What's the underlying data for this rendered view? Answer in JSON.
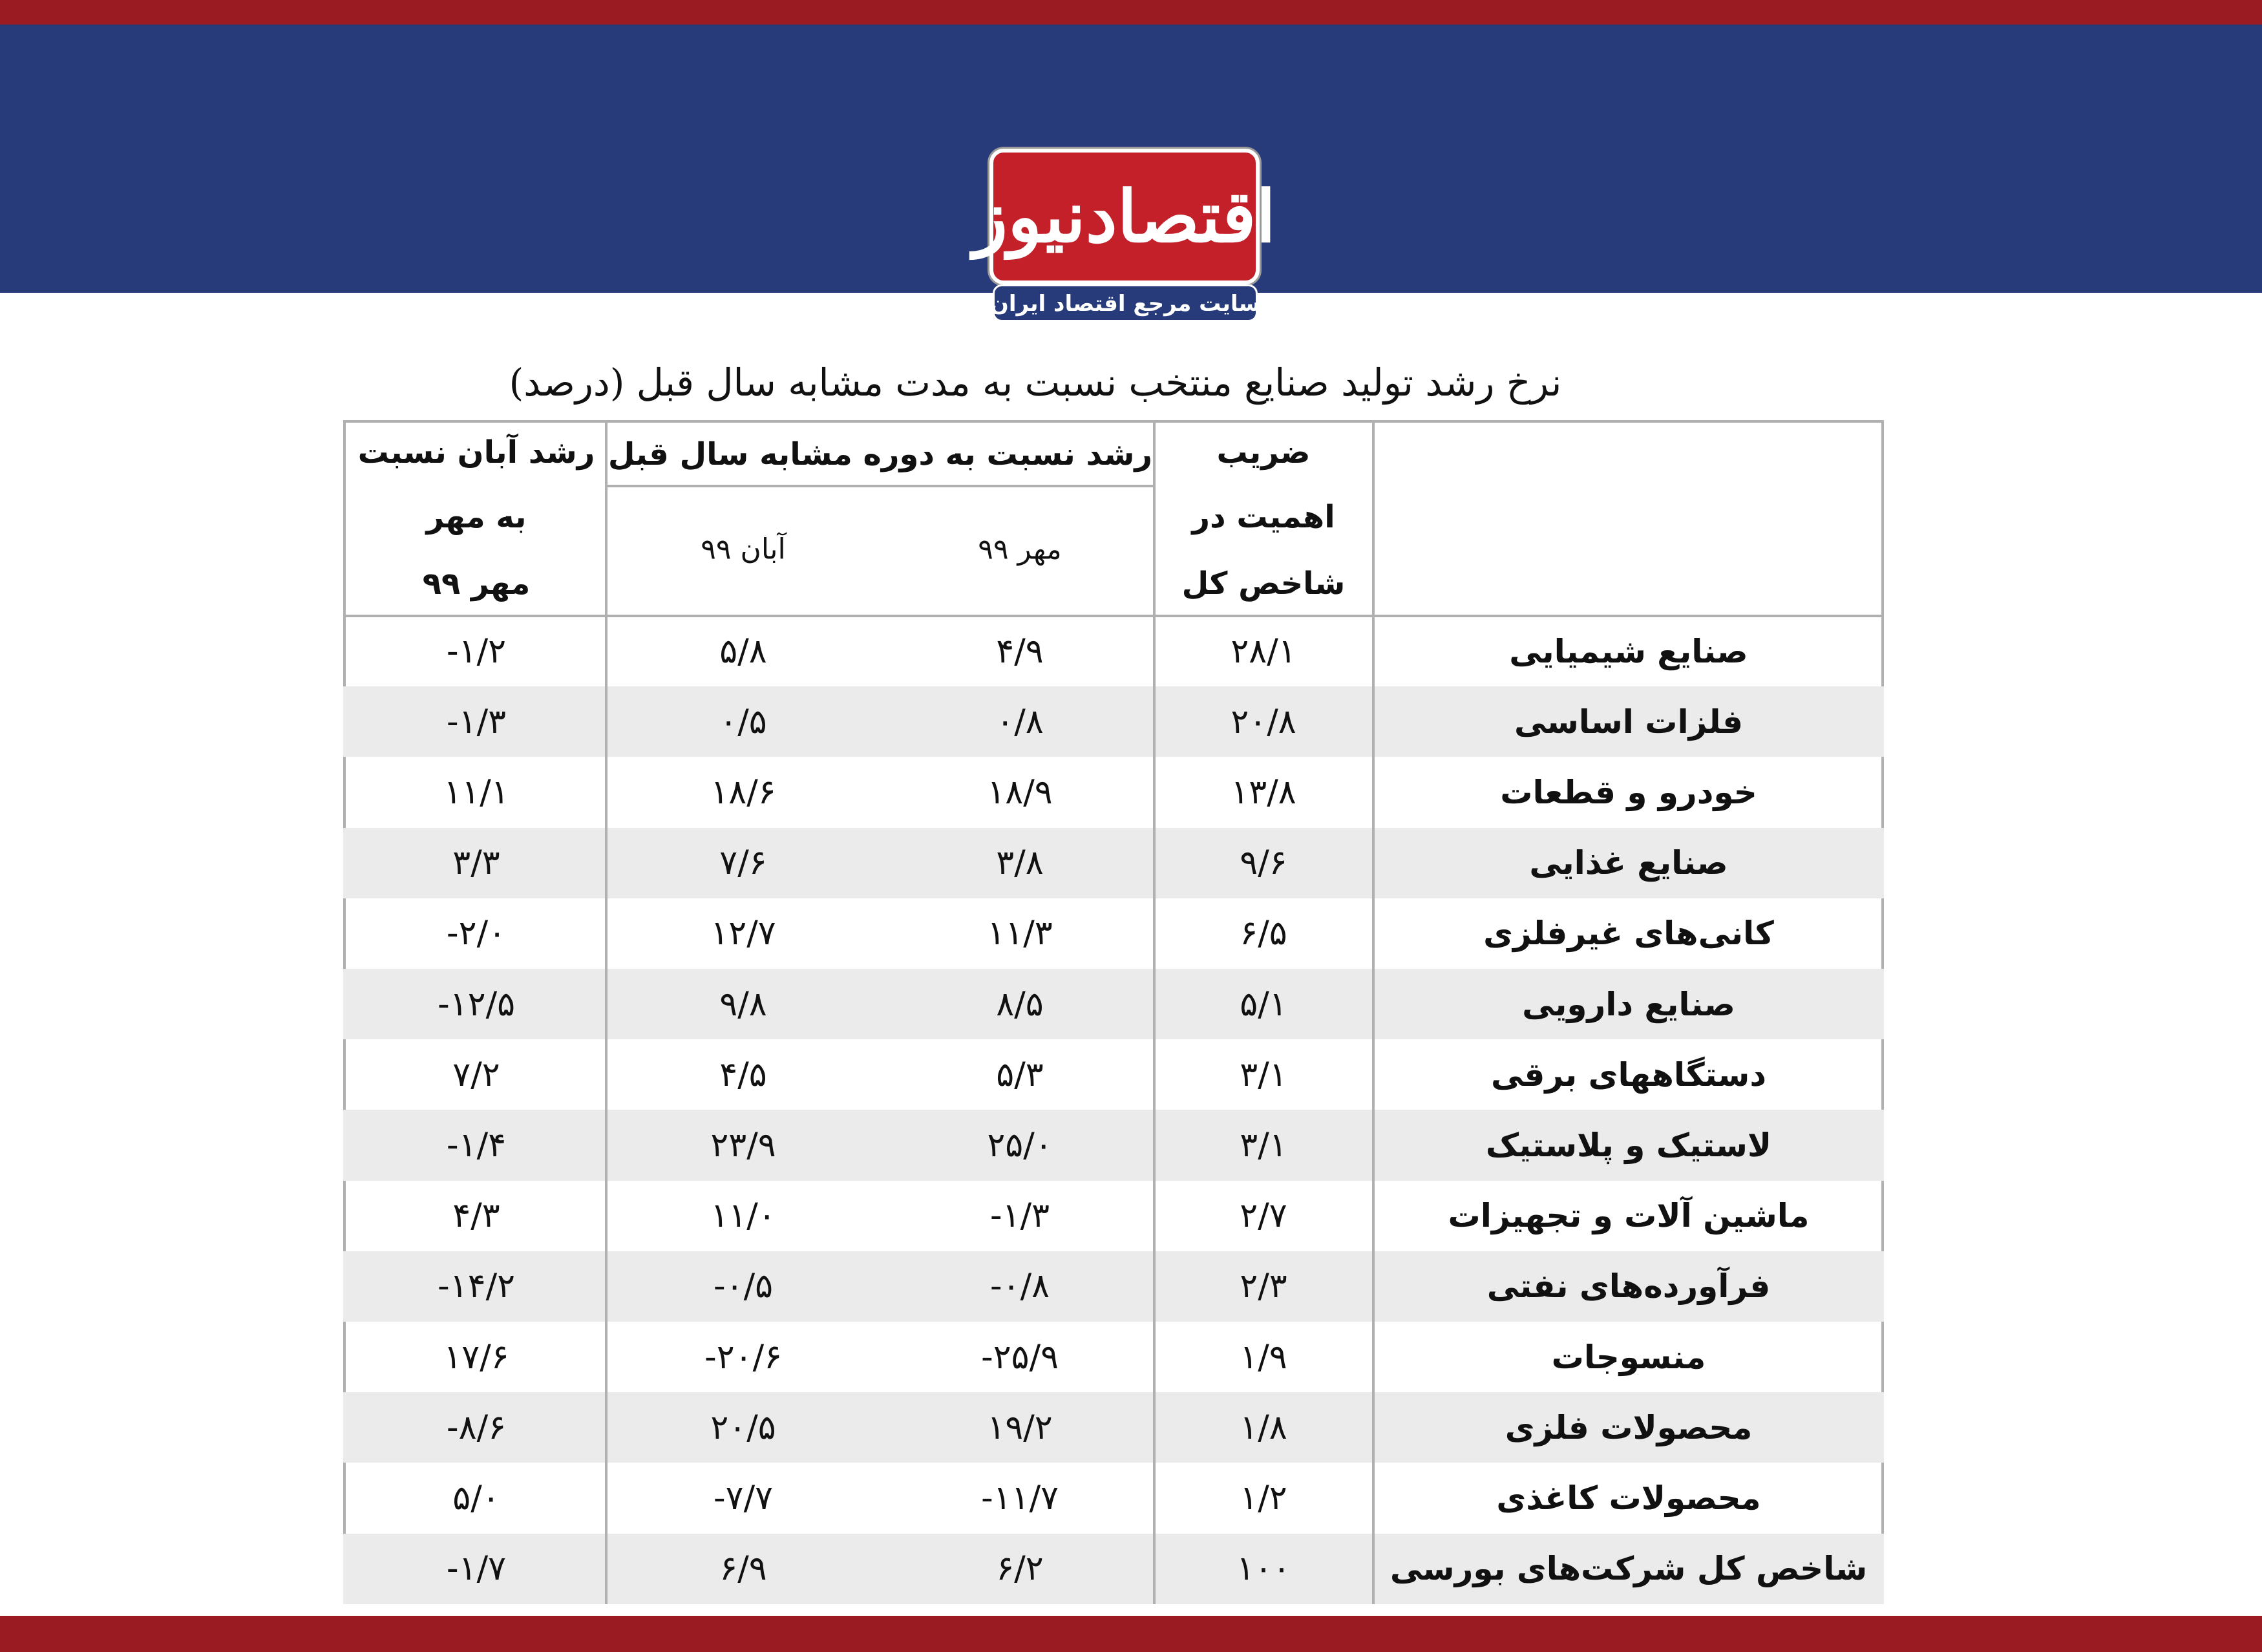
{
  "header": {
    "logo": "اقتصادنیوز",
    "tagline": "سایت مرجع اقتصاد ایران"
  },
  "title": "نرخ رشد تولید صنایع منتخب نسبت به مدت مشابه سال قبل (درصد)",
  "table": {
    "header": {
      "weight": [
        "ضریب",
        "اهمیت در",
        "شاخص کل"
      ],
      "group": "رشد نسبت به دوره مشابه سال قبل",
      "subs": [
        "مهر ۹۹",
        "آبان ۹۹"
      ],
      "change": [
        "رشد آبان نسبت",
        "به مهر",
        "مهر ۹۹"
      ]
    },
    "rows": [
      [
        "صنایع شیمیایی",
        "۲۸/۱",
        "۴/۹",
        "۵/۸",
        "-۱/۲"
      ],
      [
        "فلزات اساسی",
        "۲۰/۸",
        "۰/۸",
        "۰/۵",
        "-۱/۳"
      ],
      [
        "خودرو و قطعات",
        "۱۳/۸",
        "۱۸/۹",
        "۱۸/۶",
        "۱۱/۱"
      ],
      [
        "صنایع غذایی",
        "۹/۶",
        "۳/۸",
        "۷/۶",
        "۳/۳"
      ],
      [
        "کانی‌های غیرفلزی",
        "۶/۵",
        "۱۱/۳",
        "۱۲/۷",
        "-۲/۰"
      ],
      [
        "صنایع دارویی",
        "۵/۱",
        "۸/۵",
        "۹/۸",
        "-۱۲/۵"
      ],
      [
        "دستگاههای برقی",
        "۳/۱",
        "۵/۳",
        "۴/۵",
        "۷/۲"
      ],
      [
        "لاستیک و پلاستیک",
        "۳/۱",
        "۲۵/۰",
        "۲۳/۹",
        "-۱/۴"
      ],
      [
        "ماشین آلات و تجهیزات",
        "۲/۷",
        "-۱/۳",
        "۱۱/۰",
        "۴/۳"
      ],
      [
        "فرآورده‌های نفتی",
        "۲/۳",
        "-۰/۸",
        "-۰/۵",
        "-۱۴/۲"
      ],
      [
        "منسوجات",
        "۱/۹",
        "-۲۵/۹",
        "-۲۰/۶",
        "۱۷/۶"
      ],
      [
        "محصولات فلزی",
        "۱/۸",
        "۱۹/۲",
        "۲۰/۵",
        "-۸/۶"
      ],
      [
        "محصولات کاغذی",
        "۱/۲",
        "-۱۱/۷",
        "-۷/۷",
        "۵/۰"
      ],
      [
        "شاخص کل شرکت‌های بورسی",
        "۱۰۰",
        "۶/۲",
        "۶/۹",
        "-۱/۷"
      ]
    ]
  }
}
